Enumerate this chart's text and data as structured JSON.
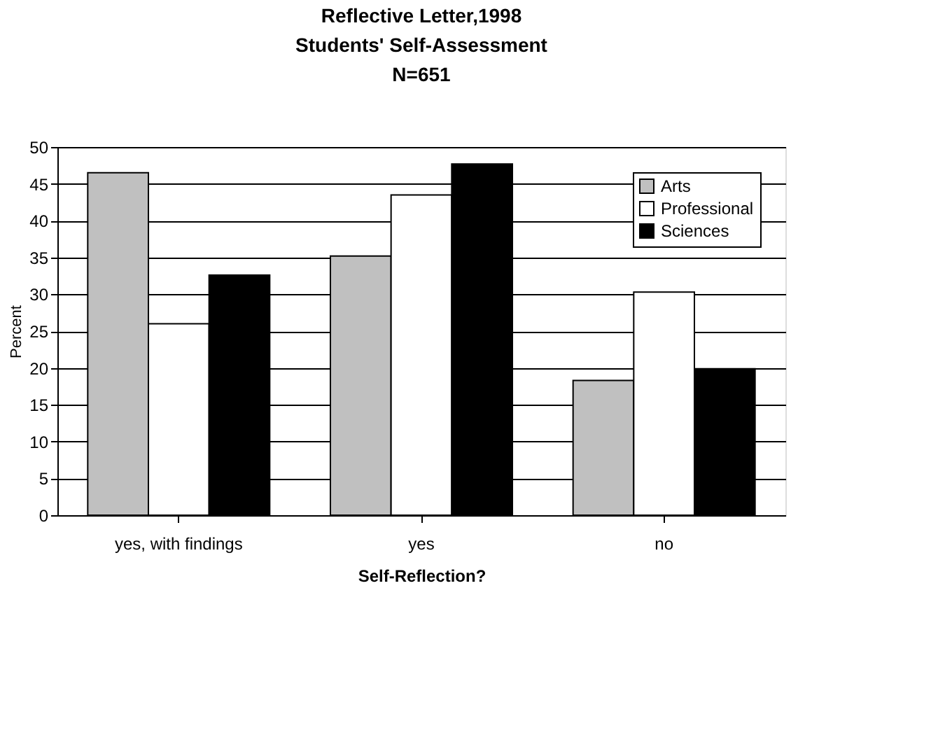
{
  "chart_data": {
    "type": "bar",
    "title": "Reflective Letter,1998",
    "subtitle": "Students' Self-Assessment\nN=651",
    "xlabel": "Self-Reflection?",
    "ylabel": "Percent",
    "categories": [
      "yes, with findings",
      "yes",
      "no"
    ],
    "series": [
      {
        "name": "Arts",
        "color": "#c0c0c0",
        "values": [
          46.5,
          35.2,
          18.3
        ]
      },
      {
        "name": "Professional",
        "color": "#ffffff",
        "values": [
          26.0,
          43.5,
          30.3
        ]
      },
      {
        "name": "Sciences",
        "color": "#000000",
        "values": [
          32.6,
          47.7,
          19.9
        ]
      }
    ],
    "ylim": [
      0,
      50
    ],
    "yticks": [
      0,
      5,
      10,
      15,
      20,
      25,
      30,
      35,
      40,
      45,
      50
    ],
    "grid": "y",
    "legend": "top right"
  }
}
